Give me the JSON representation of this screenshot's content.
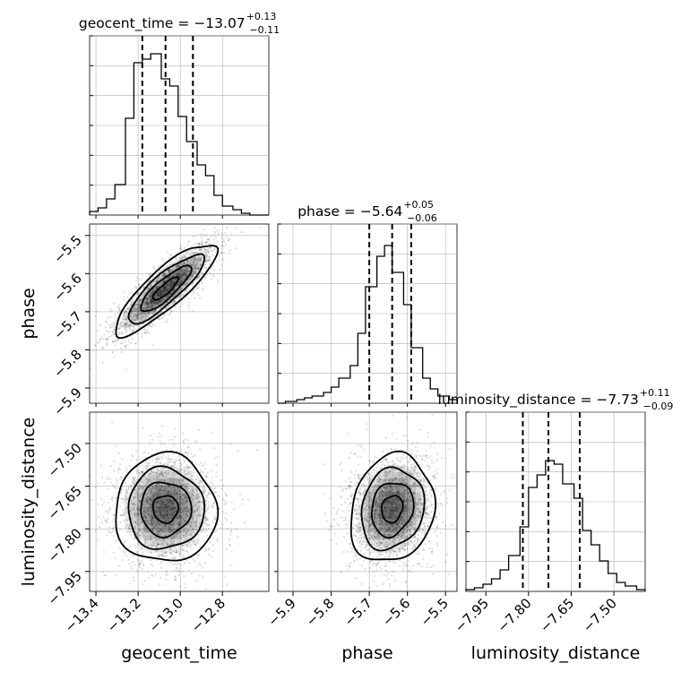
{
  "chart_data": {
    "type": "scatter",
    "parameters": [
      "geocent_time",
      "phase",
      "luminosity_distance"
    ],
    "axis_labels": {
      "geocent_time": "geocent_time",
      "phase": "phase",
      "luminosity_distance": "luminosity_distance"
    },
    "ranges": {
      "geocent_time": [
        -13.43,
        -12.58
      ],
      "phase": [
        -5.94,
        -5.47
      ],
      "luminosity_distance": [
        -8.02,
        -7.39
      ]
    },
    "ticks": {
      "geocent_time": [
        -13.4,
        -13.2,
        -13.0,
        -12.8
      ],
      "phase": [
        -5.9,
        -5.8,
        -5.7,
        -5.6,
        -5.5
      ],
      "luminosity_distance": [
        -7.95,
        -7.8,
        -7.65,
        -7.5
      ]
    },
    "tick_labels": {
      "geocent_time": [
        "−13.4",
        "−13.2",
        "−13.0",
        "−12.8"
      ],
      "phase": [
        "−5.9",
        "−5.8",
        "−5.7",
        "−5.6",
        "−5.5"
      ],
      "luminosity_distance": [
        "−7.95",
        "−7.80",
        "−7.65",
        "−7.50"
      ]
    },
    "titles": {
      "geocent_time": {
        "name": "geocent_time",
        "median": "−13.07",
        "plus": "+0.13",
        "minus": "−0.11"
      },
      "phase": {
        "name": "phase",
        "median": "−5.64",
        "plus": "+0.05",
        "minus": "−0.06"
      },
      "luminosity_distance": {
        "name": "luminosity_distance",
        "median": "−7.73",
        "plus": "+0.11",
        "minus": "−0.09"
      }
    },
    "quantiles": {
      "geocent_time": [
        -13.18,
        -13.07,
        -12.94
      ],
      "phase": [
        -5.7,
        -5.64,
        -5.59
      ],
      "luminosity_distance": [
        -7.82,
        -7.73,
        -7.62
      ]
    },
    "histograms": {
      "geocent_time": {
        "edges": [
          -13.43,
          -13.39,
          -13.35,
          -13.31,
          -13.26,
          -13.22,
          -13.18,
          -13.14,
          -13.09,
          -13.05,
          -13.01,
          -12.97,
          -12.92,
          -12.88,
          -12.84,
          -12.8,
          -12.75,
          -12.71,
          -12.67,
          -12.63,
          -12.58
        ],
        "counts": [
          0.02,
          0.04,
          0.09,
          0.17,
          0.54,
          0.85,
          0.87,
          0.9,
          0.76,
          0.72,
          0.55,
          0.41,
          0.28,
          0.22,
          0.11,
          0.05,
          0.03,
          0.01,
          0.0,
          0.0
        ]
      },
      "phase": {
        "edges": [
          -5.94,
          -5.92,
          -5.89,
          -5.87,
          -5.85,
          -5.82,
          -5.8,
          -5.78,
          -5.75,
          -5.73,
          -5.71,
          -5.68,
          -5.66,
          -5.64,
          -5.61,
          -5.59,
          -5.56,
          -5.54,
          -5.52,
          -5.49,
          -5.47
        ],
        "counts": [
          0.0,
          0.01,
          0.02,
          0.03,
          0.04,
          0.06,
          0.09,
          0.14,
          0.21,
          0.39,
          0.65,
          0.82,
          0.88,
          0.73,
          0.55,
          0.31,
          0.14,
          0.08,
          0.04,
          0.02
        ]
      },
      "luminosity_distance": {
        "edges": [
          -8.02,
          -7.99,
          -7.96,
          -7.93,
          -7.9,
          -7.87,
          -7.83,
          -7.8,
          -7.77,
          -7.74,
          -7.71,
          -7.68,
          -7.64,
          -7.61,
          -7.58,
          -7.55,
          -7.52,
          -7.49,
          -7.46,
          -7.42,
          -7.39
        ],
        "counts": [
          0.01,
          0.02,
          0.04,
          0.07,
          0.12,
          0.2,
          0.36,
          0.58,
          0.65,
          0.73,
          0.71,
          0.6,
          0.52,
          0.34,
          0.26,
          0.17,
          0.1,
          0.05,
          0.03,
          0.01
        ]
      }
    },
    "scatter_stats": {
      "geocent_time|phase": {
        "mean": [
          -13.07,
          -5.64
        ],
        "sd": [
          0.12,
          0.06
        ],
        "corr": 0.85
      },
      "geocent_time|luminosity_distance": {
        "mean": [
          -13.07,
          -7.73
        ],
        "sd": [
          0.12,
          0.095
        ],
        "corr": 0.0
      },
      "phase|luminosity_distance": {
        "mean": [
          -5.64,
          -7.73
        ],
        "sd": [
          0.055,
          0.095
        ],
        "corr": 0.15
      }
    },
    "contour_levels_sigma": [
      0.5,
      1.0,
      1.5,
      2.0
    ],
    "grid": true
  }
}
